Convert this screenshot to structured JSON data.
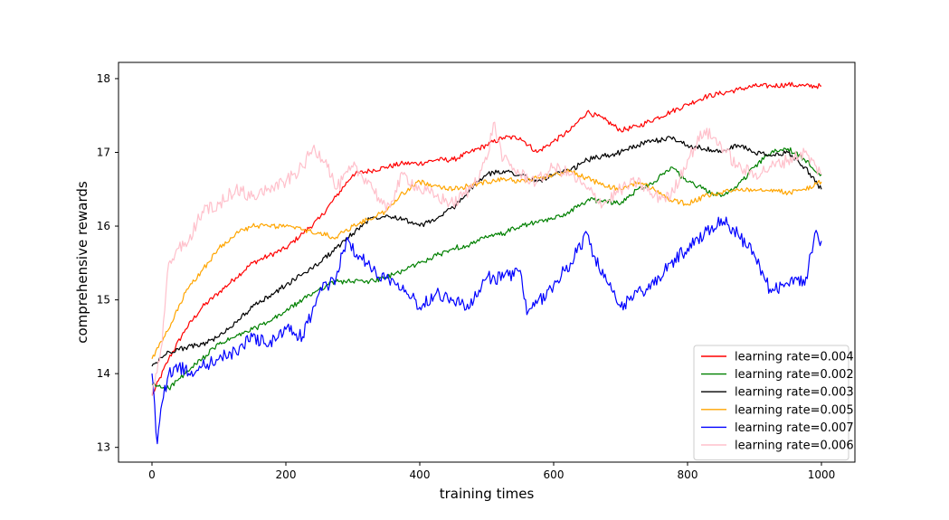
{
  "chart_data": {
    "type": "line",
    "title": "",
    "xlabel": "training times",
    "ylabel": "comprehensive rewards",
    "xlim": [
      -50,
      1050
    ],
    "ylim": [
      12.8,
      18.22
    ],
    "xticks": [
      0,
      200,
      400,
      600,
      800,
      1000
    ],
    "yticks": [
      13,
      14,
      15,
      16,
      17,
      18
    ],
    "grid": false,
    "legend_position": "lower-right",
    "series": [
      {
        "name": "learning rate=0.004",
        "color": "#ff0000",
        "x": [
          0,
          25,
          50,
          75,
          100,
          125,
          150,
          175,
          200,
          225,
          250,
          275,
          300,
          325,
          350,
          375,
          400,
          425,
          450,
          475,
          500,
          525,
          550,
          575,
          600,
          625,
          650,
          675,
          700,
          725,
          750,
          775,
          800,
          825,
          850,
          875,
          900,
          925,
          950,
          975,
          1000
        ],
        "y": [
          13.7,
          14.2,
          14.6,
          14.9,
          15.1,
          15.3,
          15.5,
          15.6,
          15.7,
          15.9,
          16.1,
          16.4,
          16.7,
          16.75,
          16.8,
          16.85,
          16.85,
          16.9,
          16.9,
          17.0,
          17.1,
          17.2,
          17.2,
          17.0,
          17.15,
          17.3,
          17.55,
          17.45,
          17.3,
          17.35,
          17.45,
          17.55,
          17.65,
          17.75,
          17.8,
          17.85,
          17.9,
          17.9,
          17.92,
          17.9,
          17.9
        ]
      },
      {
        "name": "learning rate=0.002",
        "color": "#008000",
        "x": [
          0,
          25,
          50,
          75,
          100,
          125,
          150,
          175,
          200,
          225,
          250,
          275,
          300,
          325,
          350,
          375,
          400,
          425,
          450,
          475,
          500,
          525,
          550,
          575,
          600,
          625,
          650,
          675,
          700,
          725,
          750,
          775,
          800,
          825,
          850,
          875,
          900,
          925,
          950,
          975,
          1000
        ],
        "y": [
          13.85,
          13.8,
          14.0,
          14.2,
          14.4,
          14.5,
          14.6,
          14.7,
          14.85,
          15.0,
          15.15,
          15.25,
          15.25,
          15.25,
          15.3,
          15.4,
          15.5,
          15.6,
          15.7,
          15.75,
          15.85,
          15.9,
          16.0,
          16.05,
          16.1,
          16.2,
          16.35,
          16.35,
          16.3,
          16.5,
          16.6,
          16.8,
          16.6,
          16.5,
          16.4,
          16.55,
          16.8,
          17.0,
          17.05,
          16.9,
          16.7
        ]
      },
      {
        "name": "learning rate=0.003",
        "color": "#000000",
        "x": [
          0,
          25,
          50,
          75,
          100,
          125,
          150,
          175,
          200,
          225,
          250,
          275,
          300,
          325,
          350,
          375,
          400,
          425,
          450,
          475,
          500,
          525,
          550,
          575,
          600,
          625,
          650,
          675,
          700,
          725,
          750,
          775,
          800,
          825,
          850,
          875,
          900,
          925,
          950,
          975,
          1000
        ],
        "y": [
          14.1,
          14.3,
          14.35,
          14.4,
          14.5,
          14.7,
          14.9,
          15.05,
          15.2,
          15.35,
          15.5,
          15.7,
          15.9,
          16.1,
          16.15,
          16.1,
          16.0,
          16.1,
          16.25,
          16.5,
          16.7,
          16.75,
          16.7,
          16.6,
          16.7,
          16.75,
          16.9,
          16.95,
          17.0,
          17.1,
          17.15,
          17.2,
          17.1,
          17.05,
          17.0,
          17.1,
          17.0,
          16.95,
          17.0,
          16.8,
          16.5
        ]
      },
      {
        "name": "learning rate=0.005",
        "color": "#ffa500",
        "x": [
          0,
          25,
          50,
          75,
          100,
          125,
          150,
          175,
          200,
          225,
          250,
          275,
          300,
          325,
          350,
          375,
          400,
          425,
          450,
          475,
          500,
          525,
          550,
          575,
          600,
          625,
          650,
          675,
          700,
          725,
          750,
          775,
          800,
          825,
          850,
          875,
          900,
          925,
          950,
          975,
          1000
        ],
        "y": [
          14.2,
          14.6,
          15.1,
          15.4,
          15.7,
          15.9,
          16.0,
          16.0,
          16.0,
          15.95,
          15.9,
          15.85,
          16.0,
          16.1,
          16.2,
          16.45,
          16.6,
          16.55,
          16.5,
          16.55,
          16.6,
          16.65,
          16.6,
          16.65,
          16.7,
          16.75,
          16.65,
          16.55,
          16.5,
          16.6,
          16.5,
          16.35,
          16.3,
          16.4,
          16.45,
          16.5,
          16.5,
          16.5,
          16.45,
          16.5,
          16.6
        ]
      },
      {
        "name": "learning rate=0.007",
        "color": "#0000ff",
        "x": [
          0,
          8,
          15,
          25,
          40,
          55,
          75,
          100,
          125,
          150,
          175,
          200,
          225,
          250,
          275,
          290,
          310,
          330,
          350,
          375,
          400,
          425,
          450,
          475,
          500,
          525,
          550,
          560,
          575,
          600,
          625,
          650,
          660,
          675,
          700,
          725,
          750,
          775,
          800,
          825,
          850,
          875,
          900,
          925,
          940,
          960,
          975,
          990,
          1000
        ],
        "y": [
          14.0,
          13.05,
          13.6,
          14.0,
          14.1,
          14.0,
          14.1,
          14.2,
          14.3,
          14.5,
          14.4,
          14.6,
          14.5,
          15.1,
          15.3,
          15.8,
          15.6,
          15.4,
          15.3,
          15.2,
          14.9,
          15.1,
          15.0,
          14.9,
          15.3,
          15.3,
          15.4,
          14.8,
          14.95,
          15.2,
          15.5,
          15.9,
          15.6,
          15.3,
          14.9,
          15.1,
          15.2,
          15.5,
          15.7,
          15.9,
          16.1,
          15.9,
          15.6,
          15.1,
          15.2,
          15.3,
          15.2,
          15.9,
          15.8
        ]
      },
      {
        "name": "learning rate=0.006",
        "color": "#ffc0cb",
        "x": [
          0,
          15,
          25,
          40,
          55,
          75,
          100,
          125,
          150,
          175,
          200,
          225,
          240,
          260,
          275,
          300,
          325,
          350,
          375,
          400,
          425,
          450,
          475,
          500,
          510,
          525,
          550,
          575,
          600,
          625,
          650,
          675,
          700,
          725,
          750,
          775,
          800,
          825,
          850,
          875,
          900,
          925,
          950,
          975,
          1000
        ],
        "y": [
          13.7,
          14.4,
          15.5,
          15.7,
          15.8,
          16.2,
          16.3,
          16.5,
          16.4,
          16.5,
          16.6,
          16.8,
          17.05,
          16.9,
          16.5,
          16.8,
          16.6,
          16.2,
          16.7,
          16.5,
          16.4,
          16.3,
          16.5,
          16.9,
          17.4,
          16.9,
          16.7,
          16.6,
          16.8,
          16.7,
          16.5,
          16.3,
          16.5,
          16.6,
          16.4,
          16.4,
          16.9,
          17.3,
          17.1,
          16.8,
          16.7,
          16.8,
          16.9,
          17.0,
          16.7
        ]
      }
    ]
  }
}
